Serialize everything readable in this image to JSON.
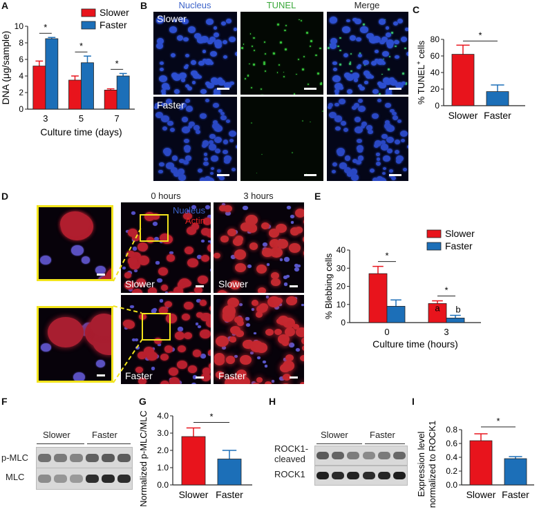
{
  "panel_letters": {
    "a": "A",
    "b": "B",
    "c": "C",
    "d": "D",
    "e": "E",
    "f": "F",
    "g": "G",
    "h": "H",
    "i": "I"
  },
  "colors": {
    "slower": "#e8141c",
    "faster": "#1c6fb8",
    "nucleus": "#3b62c9",
    "tunel": "#3aa83a",
    "actin": "#e82020"
  },
  "panel_b": {
    "col_headers": [
      "Nucleus",
      "TUNEL",
      "Merge"
    ],
    "row_labels": [
      "Slower",
      "Faster"
    ]
  },
  "panel_d": {
    "col_headers": [
      "0 hours",
      "3 hours"
    ],
    "legend_nucleus": "Nucleus",
    "legend_actin": "Actin",
    "row_labels": [
      "Slower",
      "Faster"
    ]
  },
  "panel_f": {
    "groups": [
      "Slower",
      "Faster"
    ],
    "rows": [
      "p-MLC",
      "MLC"
    ]
  },
  "panel_h": {
    "groups": [
      "Slower",
      "Faster"
    ],
    "row1_line1": "ROCK1-",
    "row1_line2": "cleaved",
    "row2": "ROCK1"
  },
  "chart_data": [
    {
      "panel": "A",
      "type": "bar",
      "categories": [
        "3",
        "5",
        "7"
      ],
      "series": [
        {
          "name": "Slower",
          "values": [
            5.2,
            3.5,
            2.3
          ],
          "errors": [
            0.6,
            0.5,
            0.15
          ]
        },
        {
          "name": "Faster",
          "values": [
            8.5,
            5.6,
            4.0
          ],
          "errors": [
            0.15,
            0.8,
            0.3
          ]
        }
      ],
      "xlabel": "Culture time (days)",
      "ylabel": "DNA (μg/sample)",
      "ylim": [
        0,
        10
      ],
      "yticks": [
        "0",
        "2",
        "4",
        "6",
        "8",
        "10"
      ],
      "significance": [
        "*",
        "*",
        "*"
      ],
      "legend": "top-right"
    },
    {
      "panel": "C",
      "type": "bar",
      "categories": [
        "Slower",
        "Faster"
      ],
      "values": [
        62,
        17
      ],
      "errors": [
        11,
        8
      ],
      "ylabel_main": "% TUNEL",
      "ylabel_sup": "+",
      "ylabel_tail": " cells",
      "ylim": [
        0,
        80
      ],
      "yticks": [
        "0",
        "20",
        "40",
        "60",
        "80"
      ],
      "significance": [
        "*"
      ]
    },
    {
      "panel": "E",
      "type": "bar",
      "categories": [
        "0",
        "3"
      ],
      "series": [
        {
          "name": "Slower",
          "values": [
            27,
            10.5
          ],
          "errors": [
            4,
            1.5
          ]
        },
        {
          "name": "Faster",
          "values": [
            9,
            2.5
          ],
          "errors": [
            3.5,
            1.5
          ]
        }
      ],
      "annotations": [
        "a",
        "b"
      ],
      "xlabel": "Culture time (hours)",
      "ylabel": "% Blebbing cells",
      "ylim": [
        0,
        40
      ],
      "yticks": [
        "0",
        "10",
        "20",
        "30",
        "40"
      ],
      "significance": [
        "*",
        "*"
      ],
      "legend": "top-right"
    },
    {
      "panel": "G",
      "type": "bar",
      "categories": [
        "Slower",
        "Faster"
      ],
      "values": [
        2.8,
        1.5
      ],
      "errors": [
        0.5,
        0.5
      ],
      "ylabel": "Normalized p-MLC/MLC",
      "ylim": [
        0,
        4
      ],
      "yticks": [
        "0.0",
        "1.0",
        "2.0",
        "3.0",
        "4.0"
      ],
      "significance": [
        "*"
      ]
    },
    {
      "panel": "I",
      "type": "bar",
      "categories": [
        "Slower",
        "Faster"
      ],
      "values": [
        0.64,
        0.38
      ],
      "errors": [
        0.1,
        0.03
      ],
      "ylabel_line1": "Expression level",
      "ylabel_line2": "normalized to ROCK1",
      "ylim": [
        0,
        0.8
      ],
      "yticks": [
        "0.0",
        "0.2",
        "0.4",
        "0.6",
        "0.8"
      ],
      "significance": [
        "*"
      ]
    }
  ]
}
